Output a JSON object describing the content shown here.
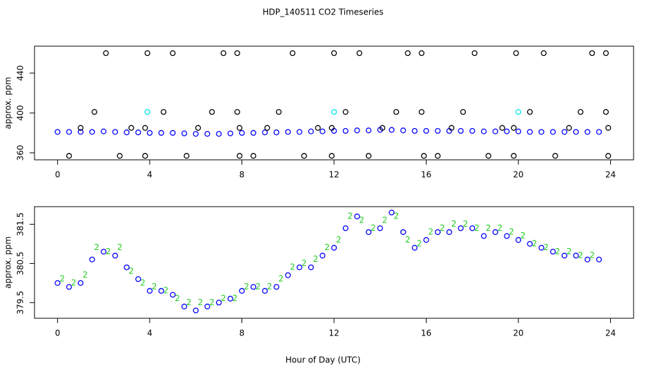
{
  "chart_data": [
    {
      "type": "scatter",
      "title": "HDP_140511  CO2 Timeseries",
      "ylabel": "approx. ppm",
      "xlim": [
        -1,
        25
      ],
      "xticks": [
        0,
        4,
        8,
        12,
        16,
        20,
        24
      ],
      "ylim": [
        353,
        467
      ],
      "yticks": [
        360,
        400,
        440
      ],
      "series": [
        {
          "color": "#0000ff",
          "marker": "o",
          "x": [
            0,
            0.5,
            1,
            1.5,
            2,
            2.5,
            3,
            3.5,
            4,
            4.5,
            5,
            5.5,
            6,
            6.5,
            7,
            7.5,
            8,
            8.5,
            9,
            9.5,
            10,
            10.5,
            11,
            11.5,
            12,
            12.5,
            13,
            13.5,
            14,
            14.5,
            15,
            15.5,
            16,
            16.5,
            17,
            17.5,
            18,
            18.5,
            19,
            19.5,
            20,
            20.5,
            21,
            21.5,
            22,
            22.5,
            23,
            23.5
          ],
          "values": [
            381,
            381,
            381,
            381,
            381.5,
            381,
            380.5,
            380.5,
            380,
            380,
            380,
            379.5,
            379,
            379,
            379,
            379.5,
            380,
            380,
            380.5,
            380.5,
            381,
            381,
            381.5,
            381.5,
            382,
            382,
            382.5,
            382.5,
            383,
            383,
            382.5,
            382,
            382,
            382,
            382,
            382,
            382,
            381.5,
            381.5,
            381.5,
            381.5,
            381,
            381,
            381,
            381,
            381,
            381,
            381
          ]
        },
        {
          "color": "#000000",
          "marker": "o",
          "x": [
            0.5,
            1,
            1.6,
            2.1,
            2.7,
            3.2,
            3.8,
            3.8,
            3.9,
            4.6,
            5.0,
            5.6,
            6.1,
            6.7,
            7.2,
            7.8,
            7.8,
            7.9,
            7.9,
            8.5,
            9.1,
            9.6,
            10.2,
            10.7,
            11.3,
            11.9,
            11.9,
            12,
            12.5,
            13.1,
            13.5,
            14.1,
            14.7,
            15.2,
            15.8,
            15.8,
            15.9,
            16.5,
            17.1,
            17.6,
            18.1,
            18.7,
            19.3,
            19.8,
            19.8,
            19.9,
            20.5,
            21.1,
            21.6,
            22.2,
            22.7,
            23.2,
            23.8,
            23.8,
            23.9,
            23.9
          ],
          "values": [
            357,
            385,
            401,
            460,
            357,
            385,
            357,
            385,
            460,
            401,
            460,
            357,
            385,
            401,
            460,
            460,
            401,
            385,
            357,
            357,
            385,
            401,
            460,
            357,
            385,
            357,
            385,
            460,
            401,
            460,
            357,
            385,
            401,
            460,
            460,
            401,
            357,
            357,
            385,
            401,
            460,
            357,
            385,
            357,
            385,
            460,
            401,
            460,
            357,
            385,
            401,
            460,
            460,
            401,
            385,
            357
          ]
        },
        {
          "color": "#00e5ee",
          "marker": "o",
          "x": [
            3.9,
            12,
            20
          ],
          "values": [
            401,
            401,
            401
          ]
        }
      ]
    },
    {
      "type": "scatter",
      "ylabel": "approx. ppm",
      "xlabel": "Hour of Day (UTC)",
      "xlim": [
        -1,
        25
      ],
      "xticks": [
        0,
        4,
        8,
        12,
        16,
        20,
        24
      ],
      "ylim": [
        379.1,
        381.95
      ],
      "yticks": [
        379.5,
        380.5,
        381.5
      ],
      "series": [
        {
          "color": "#22cc22",
          "marker": "2",
          "x": [
            0.2,
            0.7,
            1.2,
            1.7,
            2.2,
            2.7,
            3.2,
            3.7,
            4.2,
            4.7,
            5.2,
            5.7,
            6.2,
            6.7,
            7.2,
            7.7,
            8.2,
            8.7,
            9.2,
            9.7,
            10.2,
            10.7,
            11.2,
            11.7,
            12.2,
            12.7,
            13.2,
            13.7,
            14.2,
            14.7,
            15.2,
            15.7,
            16.2,
            16.7,
            17.2,
            17.7,
            18.2,
            18.7,
            19.2,
            19.7,
            20.2,
            20.7,
            21.2,
            21.7,
            22.2,
            22.7,
            23.2
          ],
          "values": [
            380.1,
            380.0,
            380.2,
            380.9,
            380.8,
            380.9,
            380.3,
            380.0,
            379.9,
            379.8,
            379.6,
            379.5,
            379.5,
            379.5,
            379.6,
            379.6,
            379.9,
            379.9,
            379.9,
            380.1,
            380.4,
            380.5,
            380.6,
            380.9,
            381.1,
            381.7,
            381.6,
            381.4,
            381.6,
            381.7,
            381.1,
            381.0,
            381.3,
            381.4,
            381.5,
            381.5,
            381.4,
            381.4,
            381.4,
            381.3,
            381.2,
            381.0,
            380.9,
            380.8,
            380.8,
            380.7,
            380.7
          ]
        },
        {
          "color": "#0000ff",
          "marker": "o",
          "x": [
            0,
            0.5,
            1,
            1.5,
            2,
            2.5,
            3,
            3.5,
            4,
            4.5,
            5,
            5.5,
            6,
            6.5,
            7,
            7.5,
            8,
            8.5,
            9,
            9.5,
            10,
            10.5,
            11,
            11.5,
            12,
            12.5,
            13,
            13.5,
            14,
            14.5,
            15,
            15.5,
            16,
            16.5,
            17,
            17.5,
            18,
            18.5,
            19,
            19.5,
            20,
            20.5,
            21,
            21.5,
            22,
            22.5,
            23,
            23.5
          ],
          "values": [
            380.0,
            379.9,
            380.0,
            380.6,
            380.8,
            380.7,
            380.4,
            380.1,
            379.8,
            379.8,
            379.7,
            379.4,
            379.3,
            379.4,
            379.5,
            379.6,
            379.8,
            379.9,
            379.8,
            379.9,
            380.2,
            380.4,
            380.4,
            380.7,
            380.9,
            381.4,
            381.7,
            381.3,
            381.4,
            381.8,
            381.3,
            380.9,
            381.1,
            381.3,
            381.3,
            381.4,
            381.4,
            381.2,
            381.3,
            381.2,
            381.1,
            381.0,
            380.9,
            380.8,
            380.7,
            380.7,
            380.6,
            380.6
          ]
        }
      ]
    }
  ]
}
